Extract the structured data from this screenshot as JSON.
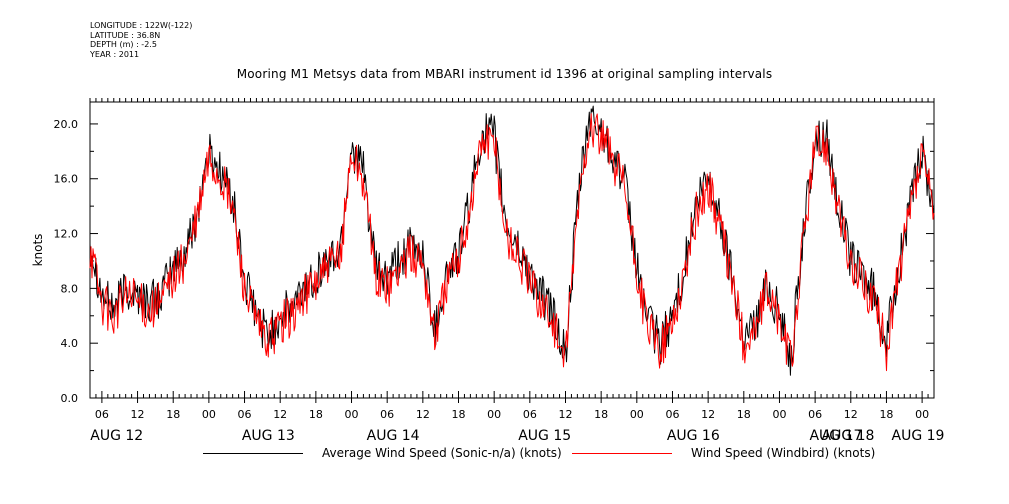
{
  "meta": {
    "longitude": "LONGITUDE : 122W(-122)",
    "latitude": "LATITUDE : 36.8N",
    "depth": "DEPTH (m) : -2.5",
    "year": "YEAR : 2011"
  },
  "chart_data": {
    "type": "line",
    "title": "Mooring M1 Metsys data from MBARI instrument id 1396 at original sampling intervals",
    "ylabel": "knots",
    "ylim": [
      0,
      21.6
    ],
    "yticks": [
      "0.0",
      "4.0",
      "8.0",
      "12.0",
      "16.0",
      "20.0"
    ],
    "xlim_hours": [
      4,
      146
    ],
    "hour_ticks": [
      "06",
      "12",
      "18",
      "00",
      "06",
      "12",
      "18",
      "00",
      "06",
      "12",
      "18",
      "00",
      "06",
      "12",
      "18",
      "00",
      "06",
      "12",
      "18",
      "00",
      "06",
      "12",
      "18",
      "00",
      "06",
      "12",
      "18",
      "00",
      "06",
      "12",
      "18",
      "00"
    ],
    "day_labels": [
      "AUG 12",
      "AUG 13",
      "AUG 14",
      "AUG 15",
      "AUG 16",
      "AUG 17",
      "AUG 18",
      "AUG 19"
    ],
    "grid": false,
    "legend_position": "bottom",
    "series_colors": [
      "#000000",
      "#ff0000"
    ],
    "x_hours": [
      4,
      6,
      8,
      10,
      12,
      14,
      16,
      18,
      20,
      22,
      24,
      26,
      28,
      30,
      32,
      34,
      36,
      38,
      40,
      42,
      44,
      46,
      48,
      50,
      52,
      54,
      56,
      58,
      60,
      62,
      64,
      66,
      68,
      70,
      72,
      74,
      76,
      78,
      80,
      82,
      84,
      86,
      88,
      90,
      92,
      94,
      96,
      98,
      100,
      102,
      104,
      106,
      108,
      110,
      112,
      114,
      116,
      118,
      120,
      122,
      124,
      126,
      128,
      130,
      132,
      134,
      136,
      138,
      140,
      142,
      144,
      146
    ],
    "series": [
      {
        "name": "Average Wind Speed (Sonic-n/a) (knots)",
        "values": [
          11.5,
          7.5,
          6.5,
          8.0,
          7.5,
          7.0,
          7.5,
          9.5,
          10.5,
          13.5,
          18.0,
          16.5,
          14.5,
          8.5,
          6.0,
          4.5,
          6.0,
          6.5,
          8.0,
          9.0,
          10.0,
          10.5,
          18.5,
          16.5,
          9.5,
          8.5,
          10.0,
          11.0,
          10.5,
          5.0,
          9.0,
          10.5,
          14.5,
          19.5,
          19.0,
          12.5,
          11.0,
          9.0,
          7.5,
          6.0,
          3.0,
          14.0,
          20.5,
          19.5,
          18.0,
          15.5,
          9.5,
          5.5,
          4.0,
          6.0,
          9.5,
          14.0,
          16.0,
          13.0,
          9.0,
          4.5,
          5.5,
          8.5,
          6.0,
          3.0,
          12.0,
          19.0,
          19.0,
          14.0,
          10.0,
          9.0,
          7.5,
          4.0,
          9.5,
          14.0,
          18.0,
          14.0
        ]
      },
      {
        "name": "Wind Speed (Windbird) (knots)",
        "values": [
          11.0,
          7.0,
          6.0,
          7.5,
          7.0,
          6.5,
          7.0,
          9.0,
          10.0,
          13.0,
          17.5,
          16.0,
          14.0,
          8.0,
          5.5,
          4.0,
          5.5,
          6.0,
          7.5,
          8.5,
          9.5,
          10.0,
          18.0,
          16.0,
          9.0,
          8.0,
          9.5,
          10.5,
          10.0,
          4.5,
          8.5,
          10.0,
          14.0,
          19.0,
          18.5,
          12.0,
          10.5,
          8.5,
          7.0,
          5.5,
          2.5,
          13.5,
          20.0,
          19.0,
          17.5,
          15.0,
          9.0,
          5.0,
          3.5,
          5.5,
          9.0,
          13.5,
          15.5,
          12.5,
          8.5,
          4.0,
          5.0,
          8.0,
          5.5,
          2.5,
          11.5,
          18.5,
          18.5,
          13.5,
          9.5,
          8.5,
          7.0,
          3.5,
          9.0,
          13.5,
          17.5,
          13.5
        ]
      }
    ]
  },
  "legend": {
    "entries": [
      {
        "label": "Average Wind Speed (Sonic-n/a) (knots)",
        "color": "#000000"
      },
      {
        "label": "Wind Speed (Windbird) (knots)",
        "color": "#ff0000"
      }
    ]
  }
}
